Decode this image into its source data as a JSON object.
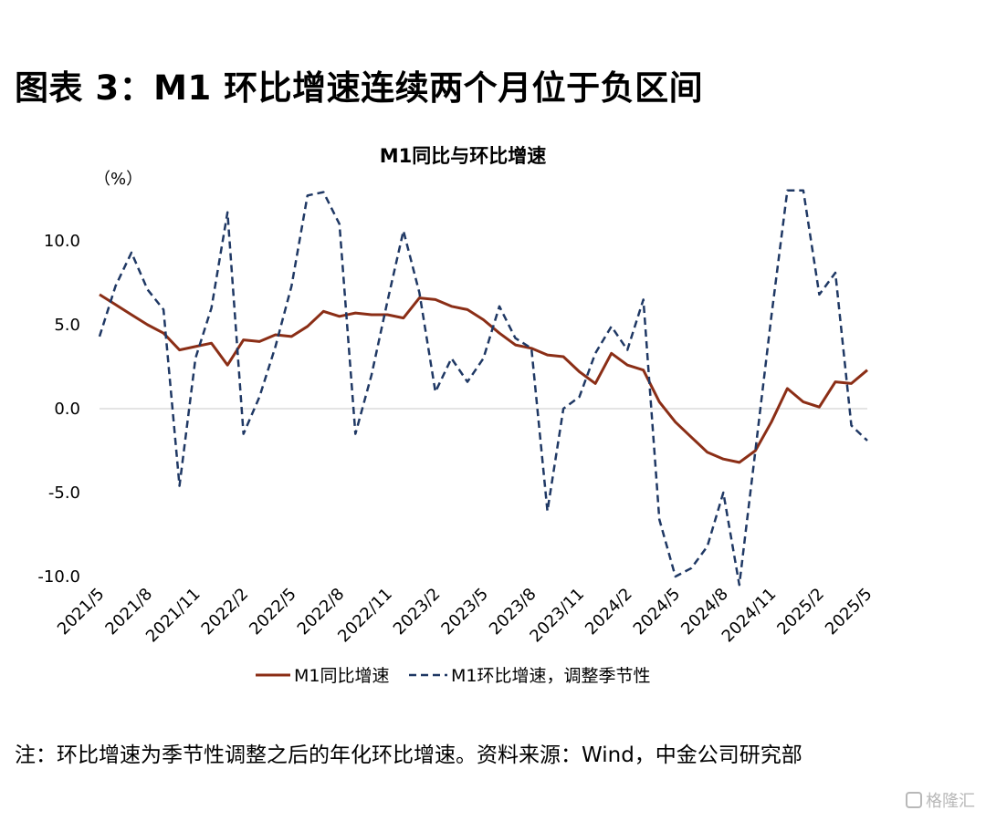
{
  "figure": {
    "title": "图表 3：M1 环比增速连续两个月位于负区间",
    "note": "注：环比增速为季节性调整之后的年化环比增速。资料来源：Wind，中金公司研究部",
    "watermark": "格隆汇"
  },
  "chart_data": {
    "type": "line",
    "title": "M1同比与环比增速",
    "ylabel": "（%）",
    "ylim": [
      -10,
      12.5
    ],
    "yticks": [
      "10.0",
      "5.0",
      "0.0",
      "-5.0",
      "-10.0"
    ],
    "yticks_values": [
      10,
      5,
      0,
      -5,
      -10
    ],
    "x": [
      "2021/5",
      "2021/6",
      "2021/7",
      "2021/8",
      "2021/9",
      "2021/10",
      "2021/11",
      "2021/12",
      "2022/1",
      "2022/2",
      "2022/3",
      "2022/4",
      "2022/5",
      "2022/6",
      "2022/7",
      "2022/8",
      "2022/9",
      "2022/10",
      "2022/11",
      "2022/12",
      "2023/1",
      "2023/2",
      "2023/3",
      "2023/4",
      "2023/5",
      "2023/6",
      "2023/7",
      "2023/8",
      "2023/9",
      "2023/10",
      "2023/11",
      "2023/12",
      "2024/1",
      "2024/2",
      "2024/3",
      "2024/4",
      "2024/5",
      "2024/6",
      "2024/7",
      "2024/8",
      "2024/9",
      "2024/10",
      "2024/11",
      "2024/12",
      "2025/1",
      "2025/2",
      "2025/3",
      "2025/4",
      "2025/5"
    ],
    "xtick_labels": [
      "2021/5",
      "2021/8",
      "2021/11",
      "2022/2",
      "2022/5",
      "2022/8",
      "2022/11",
      "2023/2",
      "2023/5",
      "2023/8",
      "2023/11",
      "2024/2",
      "2024/5",
      "2024/8",
      "2024/11",
      "2025/2",
      "2025/5"
    ],
    "series": [
      {
        "name": "M1同比增速",
        "color": "#8B2E16",
        "style": "solid",
        "values": [
          6.8,
          6.2,
          5.6,
          5.0,
          4.5,
          3.5,
          3.7,
          3.9,
          2.6,
          4.1,
          4.0,
          4.4,
          4.3,
          4.9,
          5.8,
          5.5,
          5.7,
          5.6,
          5.6,
          5.4,
          6.6,
          6.5,
          6.1,
          5.9,
          5.3,
          4.5,
          3.8,
          3.6,
          3.2,
          3.1,
          2.2,
          1.5,
          3.3,
          2.6,
          2.3,
          0.4,
          -0.8,
          -1.7,
          -2.6,
          -3.0,
          -3.2,
          -2.5,
          -0.8,
          1.2,
          0.4,
          0.1,
          1.6,
          1.5,
          2.3
        ]
      },
      {
        "name": "M1环比增速，调整季节性",
        "color": "#1F3864",
        "style": "dashed",
        "values": [
          4.3,
          7.3,
          9.3,
          7.1,
          5.9,
          -4.6,
          3.0,
          6.0,
          11.7,
          -1.5,
          0.7,
          3.7,
          7.3,
          12.7,
          12.9,
          11.0,
          -1.5,
          2.0,
          6.4,
          10.6,
          6.9,
          1.0,
          3.0,
          1.6,
          3.0,
          6.1,
          4.2,
          3.6,
          -6.1,
          0.0,
          0.7,
          3.3,
          4.9,
          3.5,
          6.5,
          -6.6,
          -10.0,
          -9.5,
          -8.2,
          -5.0,
          -10.5,
          -2.5,
          5.5,
          13.0,
          13.0,
          6.8,
          8.1,
          -1.0,
          -1.9
        ]
      }
    ],
    "legend_position": "bottom",
    "grid": false
  }
}
